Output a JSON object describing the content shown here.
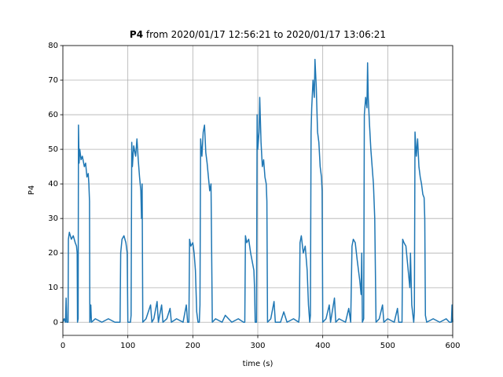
{
  "chart_data": {
    "type": "line",
    "title": {
      "variable": "P4",
      "range": "from 2020/01/17 12:56:21 to 2020/01/17 13:06:21"
    },
    "x_label": "time (s)",
    "y_label": "P4",
    "xlim": [
      0,
      600
    ],
    "ylim": [
      -3.8,
      80
    ],
    "xticks": [
      0,
      100,
      200,
      300,
      400,
      500,
      600
    ],
    "yticks": [
      0,
      10,
      20,
      30,
      40,
      50,
      60,
      70,
      80
    ],
    "grid": true,
    "series": [
      {
        "name": "P4",
        "color": "#1f77b4",
        "x": [
          0,
          2,
          4,
          5,
          6,
          8,
          8.5,
          10,
          13,
          16,
          19,
          21,
          22,
          22.5,
          23.5,
          24,
          25,
          26,
          28,
          30,
          33,
          35,
          37,
          39,
          40,
          41,
          41.5,
          43,
          44,
          50,
          60,
          70,
          80,
          88,
          89,
          91,
          94,
          97,
          99,
          100,
          104,
          105,
          106,
          107,
          109,
          112,
          114,
          116,
          118,
          120,
          121,
          122,
          123,
          128,
          135,
          137,
          140,
          145,
          147,
          152,
          154,
          160,
          165,
          167,
          175,
          185,
          190,
          192,
          194,
          195,
          197,
          200,
          202,
          204,
          206,
          208,
          210,
          211,
          212,
          214,
          216,
          218,
          220,
          222,
          224,
          226,
          228,
          229,
          230,
          235,
          245,
          250,
          260,
          270,
          278,
          280,
          281,
          283,
          286,
          289,
          292,
          294,
          295,
          296,
          298,
          299,
          300,
          302,
          303,
          305,
          307,
          309,
          311,
          313,
          314,
          315,
          320,
          325,
          327,
          335,
          340,
          345,
          355,
          363,
          364,
          365,
          367,
          370,
          373,
          376,
          378,
          380,
          381,
          382,
          383,
          385,
          387,
          388,
          390,
          392,
          394,
          396,
          398,
          399,
          400,
          405,
          410,
          412,
          418,
          420,
          425,
          435,
          440,
          443,
          445,
          447,
          450,
          453,
          455,
          457,
          459,
          460,
          461,
          463,
          464,
          466,
          468,
          469,
          470,
          472,
          474,
          476,
          478,
          479,
          480,
          482,
          487,
          492,
          494,
          500,
          510,
          515,
          517,
          522,
          523,
          525,
          528,
          530,
          532,
          534,
          535,
          537,
          540,
          541,
          542,
          544,
          546,
          548,
          550,
          552,
          554,
          556,
          557,
          558,
          560,
          570,
          580,
          590,
          595,
          598,
          599,
          600
        ],
        "values": [
          0,
          1,
          0,
          7,
          0,
          0,
          24,
          26,
          24,
          25,
          23,
          22,
          20,
          0,
          1,
          57,
          46,
          50,
          47,
          48,
          45,
          46,
          42,
          43,
          40,
          35,
          0,
          5,
          0,
          1,
          0,
          1,
          0,
          0,
          20,
          24,
          25,
          23,
          20,
          0,
          0,
          2,
          52,
          45,
          51,
          48,
          53,
          47,
          42,
          38,
          30,
          40,
          0,
          1,
          5,
          0,
          1,
          6,
          0,
          5,
          0,
          1,
          4,
          0,
          1,
          0,
          5,
          0,
          0,
          24,
          22,
          23,
          20,
          15,
          3,
          0,
          0,
          5,
          53,
          48,
          55,
          57,
          49,
          46,
          42,
          38,
          40,
          20,
          0,
          1,
          0,
          2,
          0,
          1,
          0,
          0,
          25,
          23,
          24,
          20,
          17,
          15,
          10,
          0,
          0,
          60,
          50,
          55,
          65,
          52,
          45,
          47,
          42,
          40,
          35,
          0,
          1,
          6,
          0,
          0,
          3,
          0,
          1,
          0,
          2,
          23,
          25,
          20,
          22,
          15,
          5,
          0,
          2,
          55,
          62,
          70,
          65,
          76,
          68,
          55,
          52,
          45,
          42,
          38,
          0,
          1,
          5,
          0,
          7,
          0,
          1,
          0,
          4,
          0,
          22,
          24,
          23,
          18,
          15,
          12,
          8,
          20,
          0,
          1,
          60,
          65,
          62,
          75,
          65,
          57,
          50,
          45,
          40,
          35,
          30,
          0,
          1,
          5,
          0,
          1,
          0,
          4,
          0,
          0,
          24,
          23,
          22,
          18,
          14,
          10,
          20,
          5,
          0,
          3,
          55,
          48,
          53,
          45,
          42,
          40,
          37,
          36,
          30,
          2,
          0,
          1,
          0,
          1,
          0,
          0,
          5,
          0
        ]
      }
    ]
  }
}
